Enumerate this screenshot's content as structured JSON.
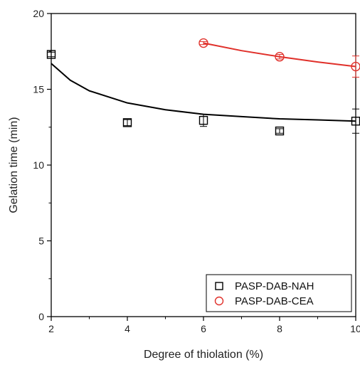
{
  "chart_data": {
    "type": "scatter",
    "xlabel": "Degree of thiolation (%)",
    "ylabel": "Gelation time (min)",
    "xlim": [
      2,
      10
    ],
    "ylim": [
      0,
      20
    ],
    "x_ticks": [
      2,
      4,
      6,
      8,
      10
    ],
    "y_ticks": [
      0,
      5,
      10,
      15,
      20
    ],
    "grid": false,
    "legend_position": "bottom-right",
    "series": [
      {
        "name": "PASP-DAB-NAH",
        "marker": "square",
        "color": "#000000",
        "x": [
          2,
          4,
          6,
          8,
          10
        ],
        "y": [
          17.3,
          12.8,
          12.95,
          12.25,
          12.9
        ],
        "yerr": [
          0.15,
          0.2,
          0.4,
          0.15,
          0.8
        ],
        "fit_curve": [
          [
            2,
            16.7
          ],
          [
            2.5,
            15.6
          ],
          [
            3,
            14.9
          ],
          [
            4,
            14.1
          ],
          [
            5,
            13.65
          ],
          [
            6,
            13.35
          ],
          [
            7,
            13.2
          ],
          [
            8,
            13.05
          ],
          [
            9,
            12.98
          ],
          [
            10,
            12.9
          ]
        ]
      },
      {
        "name": "PASP-DAB-CEA",
        "marker": "circle",
        "color": "#e0302a",
        "x": [
          6,
          8,
          10
        ],
        "y": [
          18.05,
          17.15,
          16.5
        ],
        "yerr": [
          0.1,
          0.15,
          0.7
        ],
        "fit_curve": [
          [
            6,
            18.05
          ],
          [
            7,
            17.55
          ],
          [
            8,
            17.15
          ],
          [
            9,
            16.8
          ],
          [
            10,
            16.5
          ]
        ]
      }
    ]
  }
}
